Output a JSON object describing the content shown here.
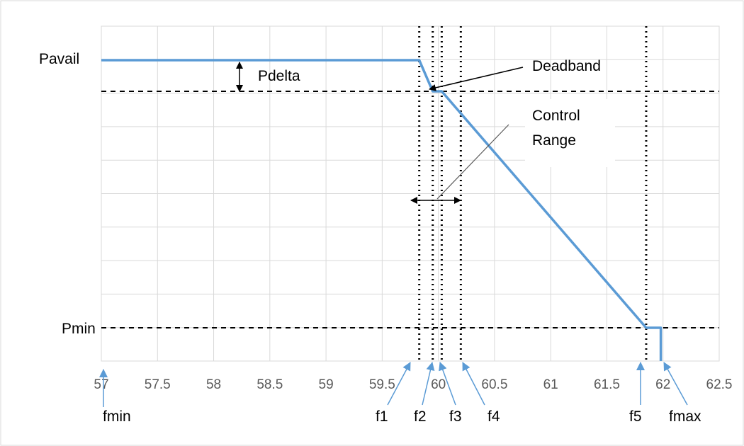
{
  "chart_data": {
    "type": "line",
    "title": "",
    "xlabel": "",
    "ylabel": "",
    "xlim": [
      57,
      62.5
    ],
    "x_ticks": [
      "57",
      "57.5",
      "58",
      "58.5",
      "59",
      "59.5",
      "60",
      "60.5",
      "61",
      "61.5",
      "62",
      "62.5"
    ],
    "grid": true,
    "series": [
      {
        "color": "#5b9bd5",
        "points": [
          {
            "x": 57,
            "level": "Pavail"
          },
          {
            "x": 59.83,
            "level": "Pavail"
          },
          {
            "x": 59.95,
            "level": "Pavail - Pdelta"
          },
          {
            "x": 60.03,
            "level": "Pavail - Pdelta"
          },
          {
            "x": 61.85,
            "level": "Pmin"
          },
          {
            "x": 61.98,
            "level": "Pmin"
          },
          {
            "x": 61.98,
            "level": "0"
          }
        ]
      }
    ],
    "y_labels": {
      "pavail": "Pavail",
      "pmin": "Pmin"
    },
    "freq_markers": [
      {
        "name": "fmin",
        "x": 57
      },
      {
        "name": "f1",
        "x": 59.83
      },
      {
        "name": "f2",
        "x": 59.95
      },
      {
        "name": "f3",
        "x": 60.03
      },
      {
        "name": "f4",
        "x": 60.2
      },
      {
        "name": "f5",
        "x": 61.85
      },
      {
        "name": "fmax",
        "x": 62.0
      }
    ],
    "annotations": {
      "pdelta": "Pdelta",
      "deadband": "Deadband",
      "control_range_line1": "Control",
      "control_range_line2": "Range"
    }
  }
}
